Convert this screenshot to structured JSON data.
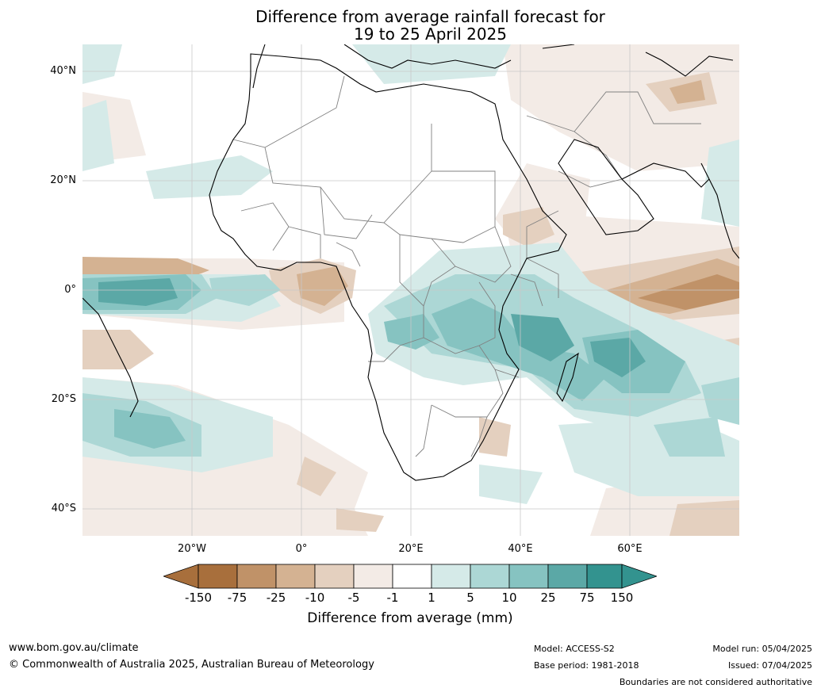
{
  "title_line1": "Difference from average rainfall forecast for",
  "title_line2": "19 to 25 April 2025",
  "lat_labels": [
    "40°N",
    "20°N",
    "0°",
    "20°S",
    "40°S"
  ],
  "lon_labels": [
    "20°W",
    "0°",
    "20°E",
    "40°E",
    "60°E"
  ],
  "colorbar": {
    "label": "Difference from average (mm)",
    "ticks": [
      "-150",
      "-75",
      "-25",
      "-10",
      "-5",
      "-1",
      "1",
      "5",
      "10",
      "25",
      "75",
      "150"
    ],
    "colors": [
      "#a86f3c",
      "#c09268",
      "#d4b292",
      "#e4d0bf",
      "#f3ebe6",
      "#ffffff",
      "#d5eae8",
      "#acd7d5",
      "#86c3c1",
      "#5ba8a6",
      "#33938f"
    ],
    "under_color": "#a86f3c",
    "over_color": "#33938f"
  },
  "map_colors": {
    "land": "#ffffff",
    "ocean": "#ffffff",
    "coast": "#000000",
    "border": "#808080",
    "grid": "#c8c8c8"
  },
  "footer": {
    "website": "www.bom.gov.au/climate",
    "copyright": "© Commonwealth of Australia 2025, Australian Bureau of Meteorology",
    "model": "Model: ACCESS-S2",
    "base_period": "Base period: 1981-2018",
    "model_run": "Model run: 05/04/2025",
    "issued": "Issued: 07/04/2025",
    "disclaimer": "Boundaries are not considered authoritative"
  }
}
